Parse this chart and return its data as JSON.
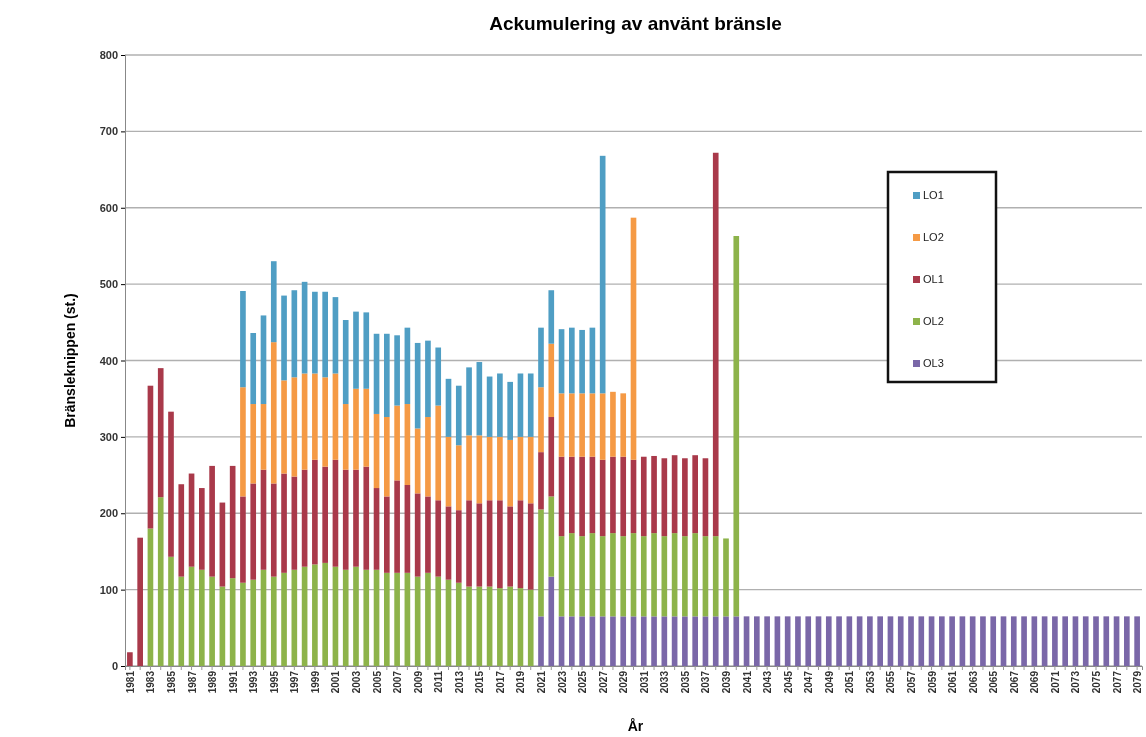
{
  "chart_data": {
    "type": "bar",
    "title": "Ackumulering av använt bränsle",
    "xlabel": "År",
    "ylabel": "Bränsleknippen (st.)",
    "categories": [
      "1981",
      null,
      "1983",
      null,
      "1985",
      null,
      "1987",
      null,
      "1989",
      null,
      "1991",
      null,
      "1993",
      null,
      "1995",
      null,
      "1997",
      null,
      "1999",
      null,
      "2001",
      null,
      "2003",
      null,
      "2005",
      null,
      "2007",
      null,
      "2009",
      null,
      "2011",
      null,
      "2013",
      null,
      "2015",
      null,
      "2017",
      null,
      "2019",
      null,
      "2021",
      null,
      "2023",
      null,
      "2025",
      null,
      "2027",
      null,
      "2029",
      null,
      "2031",
      null,
      "2033",
      null,
      "2035",
      null,
      "2037",
      null,
      "2039",
      null,
      "2041",
      null,
      "2043",
      null,
      "2045",
      null,
      "2047",
      null,
      "2049",
      null,
      "2051",
      null,
      "2053",
      null,
      "2055",
      null,
      "2057",
      null,
      "2059",
      null,
      "2061",
      null,
      "2063",
      null,
      "2065",
      null,
      "2067",
      null,
      "2069",
      null,
      "2071",
      null,
      "2073",
      null,
      "2075",
      null,
      "2077",
      null,
      "2079"
    ],
    "stacked": true,
    "ylim": [
      0,
      800
    ],
    "yticks": [
      0,
      100,
      200,
      300,
      400,
      500,
      600,
      700,
      800
    ],
    "grid": "y",
    "legend": "top right",
    "series": [
      {
        "name": "OL3",
        "color": "#7a67a8",
        "values": [
          null,
          null,
          null,
          null,
          null,
          null,
          null,
          null,
          null,
          null,
          null,
          null,
          null,
          null,
          null,
          null,
          null,
          null,
          null,
          null,
          null,
          null,
          null,
          null,
          null,
          null,
          null,
          null,
          null,
          null,
          null,
          null,
          null,
          null,
          null,
          null,
          null,
          null,
          null,
          null,
          65,
          117,
          65,
          65,
          65,
          65,
          65,
          65,
          65,
          65,
          65,
          65,
          65,
          65,
          65,
          65,
          65,
          65,
          65,
          65,
          65,
          65,
          65,
          65,
          65,
          65,
          65,
          65,
          65,
          65,
          65,
          65,
          65,
          65,
          65,
          65,
          65,
          65,
          65,
          65,
          65,
          65,
          65,
          65,
          65,
          65,
          65,
          65,
          65,
          65,
          65,
          65,
          65,
          65,
          65,
          65,
          65,
          65,
          65
        ]
      },
      {
        "name": "OL2",
        "color": "#8db34a",
        "values": [
          null,
          null,
          180,
          221,
          143,
          117,
          130,
          126,
          117,
          104,
          115,
          109,
          113,
          126,
          117,
          122,
          126,
          130,
          133,
          135,
          130,
          126,
          130,
          126,
          126,
          122,
          122,
          122,
          117,
          122,
          117,
          113,
          109,
          104,
          104,
          104,
          102,
          104,
          102,
          100,
          140,
          105,
          105,
          109,
          105,
          109,
          105,
          109,
          105,
          109,
          105,
          109,
          105,
          109,
          105,
          109,
          105,
          105,
          102,
          498,
          null,
          null,
          null,
          null,
          null,
          null,
          null,
          null,
          null,
          null,
          null,
          null,
          null,
          null,
          null,
          null,
          null,
          null,
          null,
          null,
          null,
          null,
          null,
          null,
          null,
          null,
          null,
          null,
          null,
          null,
          null,
          null,
          null,
          null,
          null,
          null,
          null,
          null,
          null
        ]
      },
      {
        "name": "OL1",
        "color": "#a9394a",
        "values": [
          18,
          168,
          187,
          169,
          190,
          121,
          122,
          107,
          145,
          110,
          147,
          113,
          126,
          131,
          122,
          130,
          122,
          127,
          137,
          126,
          140,
          131,
          127,
          135,
          107,
          100,
          121,
          115,
          109,
          100,
          100,
          96,
          95,
          113,
          109,
          113,
          115,
          105,
          115,
          113,
          75,
          104,
          104,
          100,
          104,
          100,
          100,
          100,
          104,
          96,
          104,
          101,
          102,
          102,
          102,
          102,
          102,
          502,
          null,
          null,
          null,
          null,
          null,
          null,
          null,
          null,
          null,
          null,
          null,
          null,
          null,
          null,
          null,
          null,
          null,
          null,
          null,
          null,
          null,
          null,
          null,
          null,
          null,
          null,
          null,
          null,
          null,
          null,
          null,
          null,
          null,
          null,
          null,
          null,
          null,
          null,
          null,
          null,
          null
        ]
      },
      {
        "name": "LO2",
        "color": "#f59a45",
        "values": [
          null,
          null,
          null,
          null,
          null,
          null,
          null,
          null,
          null,
          null,
          null,
          143,
          104,
          86,
          185,
          122,
          130,
          126,
          113,
          117,
          113,
          86,
          106,
          102,
          97,
          104,
          98,
          106,
          85,
          104,
          124,
          91,
          85,
          85,
          89,
          83,
          83,
          87,
          83,
          87,
          85,
          96,
          83,
          83,
          83,
          83,
          87,
          85,
          83,
          317,
          null,
          null,
          null,
          null,
          null,
          null,
          null,
          null,
          null,
          null,
          null,
          null,
          null,
          null,
          null,
          null,
          null,
          null,
          null,
          null,
          null,
          null,
          null,
          null,
          null,
          null,
          null,
          null,
          null,
          null,
          null,
          null,
          null,
          null,
          null,
          null,
          null,
          null,
          null,
          null,
          null,
          null,
          null,
          null,
          null,
          null,
          null,
          null,
          null
        ]
      },
      {
        "name": "LO1",
        "color": "#4f9ec4",
        "values": [
          null,
          null,
          null,
          null,
          null,
          null,
          null,
          null,
          null,
          null,
          null,
          126,
          93,
          116,
          106,
          111,
          114,
          120,
          107,
          112,
          100,
          110,
          101,
          100,
          105,
          109,
          92,
          100,
          112,
          100,
          76,
          76,
          78,
          89,
          96,
          79,
          83,
          76,
          83,
          83,
          78,
          70,
          84,
          86,
          83,
          86,
          311,
          null,
          null,
          null,
          null,
          null,
          null,
          null,
          null,
          null,
          null,
          null,
          null,
          null,
          null,
          null,
          null,
          null,
          null,
          null,
          null,
          null,
          null,
          null,
          null,
          null,
          null,
          null,
          null,
          null,
          null,
          null,
          null,
          null,
          null,
          null,
          null,
          null,
          null,
          null,
          null,
          null,
          null,
          null,
          null,
          null,
          null,
          null,
          null,
          null,
          null,
          null,
          null
        ]
      }
    ]
  }
}
